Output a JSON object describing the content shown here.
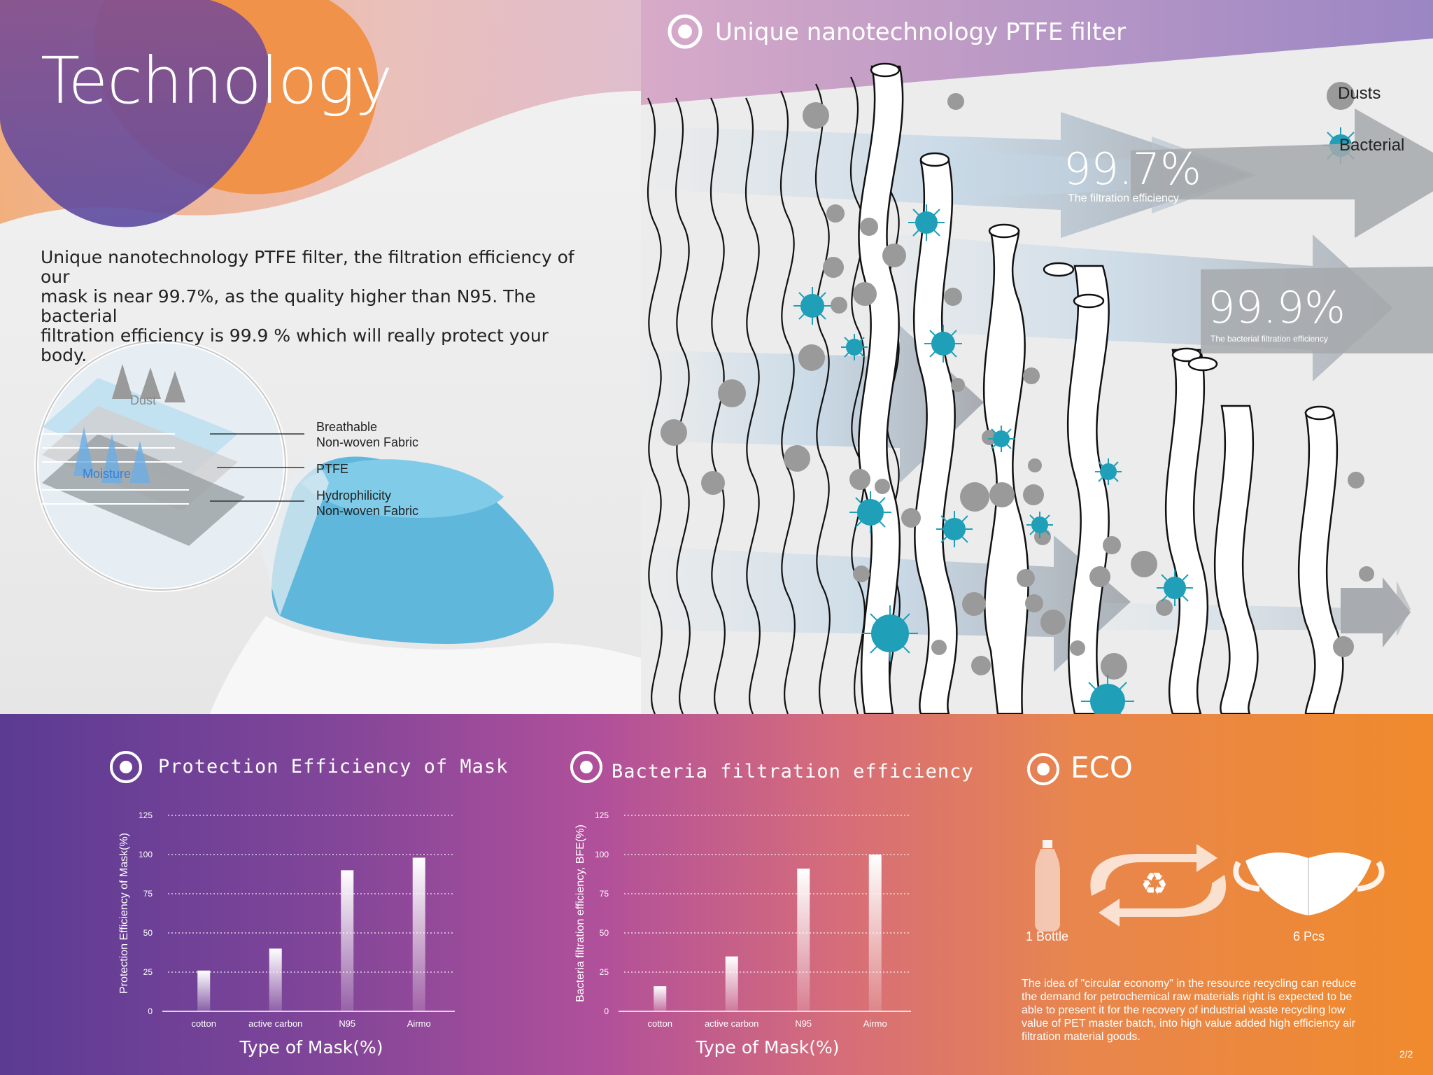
{
  "header": {
    "title": "Technology"
  },
  "intro": {
    "line1": "Unique nanotechnology PTFE filter, the filtration efficiency of our",
    "line2": "mask is near 99.7%, as the quality higher than N95. The bacterial",
    "line3": "filtration efficiency is 99.9 % which will really protect your body."
  },
  "layers": {
    "dust": "Dust",
    "moisture": "Moisture",
    "breathable_1": "Breathable",
    "breathable_2": "Non-woven Fabric",
    "ptfe": "PTFE",
    "hydro_1": "Hydrophilicity",
    "hydro_2": "Non-woven Fabric"
  },
  "filter": {
    "title": "Unique nanotechnology PTFE filter",
    "legend_dusts": "Dusts",
    "legend_bacterial": "Bacterial",
    "eff1_value": "99.7%",
    "eff1_label": "The filtration efficiency",
    "eff2_value": "99.9%",
    "eff2_label": "The bacterial filtration efficiency"
  },
  "colors": {
    "bacteria": "#1f9fb8",
    "dust": "#9a9a9a",
    "arrow": "#a6a9ad"
  },
  "chart_data": [
    {
      "type": "bar",
      "title": "Protection Efficiency of Mask",
      "xlabel": "Type of Mask(%)",
      "ylabel": "Protection Efficiency of Mask(%)",
      "categories": [
        "cotton",
        "active carbon",
        "N95",
        "Airmo"
      ],
      "values": [
        26,
        40,
        90,
        98
      ],
      "yticks": [
        "0",
        "25",
        "50",
        "75",
        "100",
        "125"
      ],
      "ylim": [
        0,
        125
      ],
      "grid": true
    },
    {
      "type": "bar",
      "title": "Bacteria filtration efficiency",
      "xlabel": "Type of Mask(%)",
      "ylabel": "Bacteria filtration efficiency, BFE(%)",
      "categories": [
        "cotton",
        "active carbon",
        "N95",
        "Airmo"
      ],
      "values": [
        16,
        35,
        91,
        100
      ],
      "yticks": [
        "0",
        "25",
        "50",
        "75",
        "100",
        "125"
      ],
      "ylim": [
        0,
        125
      ],
      "grid": true
    }
  ],
  "eco": {
    "title": "ECO",
    "bottle_label": "1 Bottle",
    "mask_label": "6 Pcs",
    "text": "The idea of \"circular economy\" in the resource recycling can reduce the demand for petrochemical raw materials right is expected to be able to present it for the recovery of industrial waste recycling low value of PET master batch, into high value added high efficiency air filtration material goods."
  },
  "page": "2/2"
}
